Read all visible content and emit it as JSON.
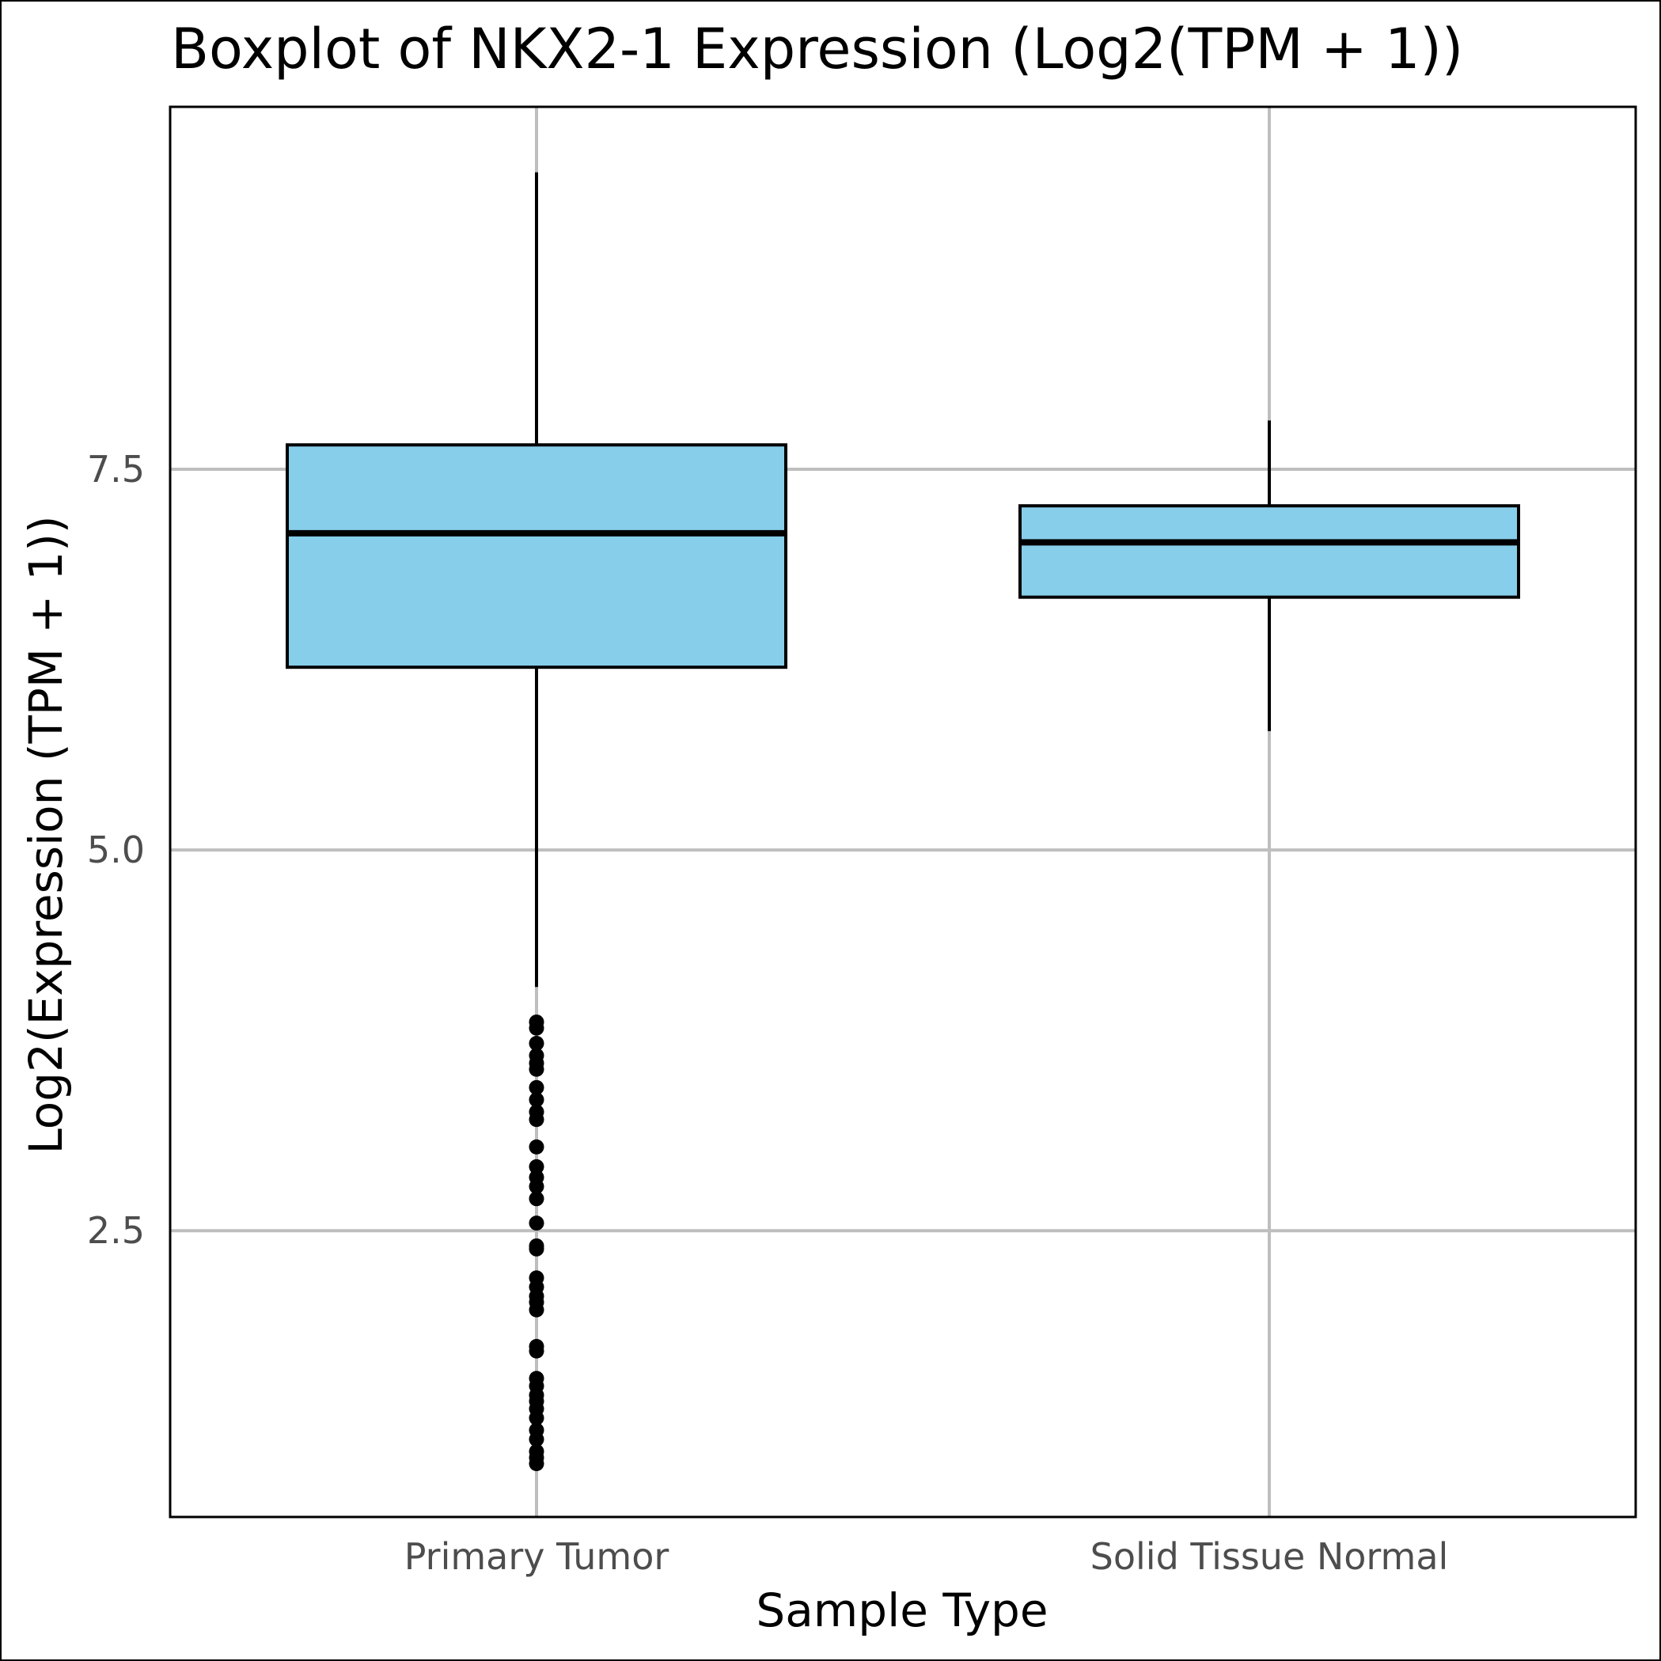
{
  "chart_data": {
    "type": "box",
    "title": "Boxplot of NKX2-1 Expression (Log2(TPM + 1))",
    "xlabel": "Sample Type",
    "ylabel": "Log2(Expression (TPM + 1))",
    "categories": [
      "Primary Tumor",
      "Solid Tissue Normal"
    ],
    "y_ticks": [
      2.5,
      5.0,
      7.5
    ],
    "y_tick_labels": [
      "2.5",
      "5.0",
      "7.5"
    ],
    "ylim": [
      0.62,
      9.88
    ],
    "grid": true,
    "colors": {
      "box_fill": "#87ceeb",
      "grid": "#bebebe",
      "outline": "#000000",
      "tick_text": "#4d4d4d"
    },
    "boxes": [
      {
        "category": "Primary Tumor",
        "whisker_low": 4.1,
        "q1": 6.2,
        "median": 7.08,
        "q3": 7.66,
        "whisker_high": 9.45,
        "outliers": [
          3.87,
          3.83,
          3.73,
          3.65,
          3.6,
          3.56,
          3.44,
          3.36,
          3.28,
          3.23,
          3.05,
          2.92,
          2.85,
          2.79,
          2.71,
          2.55,
          2.4,
          2.38,
          2.19,
          2.13,
          2.07,
          2.03,
          1.98,
          1.74,
          1.71,
          1.53,
          1.48,
          1.42,
          1.38,
          1.33,
          1.27,
          1.19,
          1.13,
          1.05,
          1.01,
          0.97
        ]
      },
      {
        "category": "Solid Tissue Normal",
        "whisker_low": 5.78,
        "q1": 6.66,
        "median": 7.02,
        "q3": 7.26,
        "whisker_high": 7.82,
        "outliers": []
      }
    ]
  }
}
